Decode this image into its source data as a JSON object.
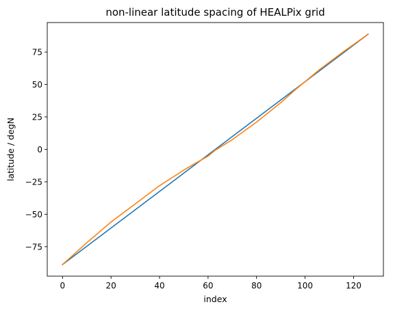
{
  "chart_data": {
    "type": "line",
    "title": "non-linear latitude spacing of HEALPix grid",
    "xlabel": "index",
    "ylabel": "latitude / degN",
    "xlim": [
      -6.3,
      132.3
    ],
    "ylim": [
      -97.72,
      97.72
    ],
    "xticks": [
      0,
      20,
      40,
      60,
      80,
      100,
      120
    ],
    "yticks": [
      -75,
      -50,
      -25,
      0,
      25,
      50,
      75
    ],
    "ytick_labels": [
      "−75",
      "−50",
      "−25",
      "0",
      "25",
      "50",
      "75"
    ],
    "grid": false,
    "legend": "none",
    "series": [
      {
        "color": "#1f77b4",
        "x": [
          0,
          126
        ],
        "y": [
          -88.8,
          88.8
        ]
      },
      {
        "color": "#ff7f0e",
        "x": [
          0,
          10,
          20,
          30,
          40,
          50,
          55,
          60,
          63,
          70,
          80,
          90,
          96,
          106,
          116,
          126
        ],
        "y": [
          -88.8,
          -72,
          -56,
          -42,
          -28,
          -16,
          -10.5,
          -5.2,
          -0.6,
          7.5,
          21,
          36,
          46,
          61.5,
          75.5,
          88.8
        ]
      }
    ]
  }
}
